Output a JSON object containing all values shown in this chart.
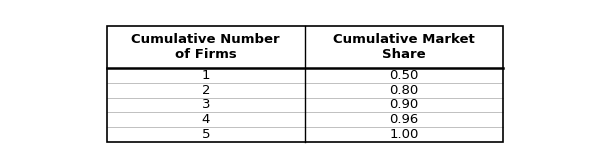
{
  "col1_header": "Cumulative Number\nof Firms",
  "col2_header": "Cumulative Market\nShare",
  "rows": [
    [
      "1",
      "0.50"
    ],
    [
      "2",
      "0.80"
    ],
    [
      "3",
      "0.90"
    ],
    [
      "4",
      "0.96"
    ],
    [
      "5",
      "1.00"
    ]
  ],
  "background_color": "#ffffff",
  "header_fontsize": 9.5,
  "cell_fontsize": 9.5,
  "border_color": "#000000",
  "fig_width": 5.95,
  "fig_height": 1.64,
  "dpi": 100
}
